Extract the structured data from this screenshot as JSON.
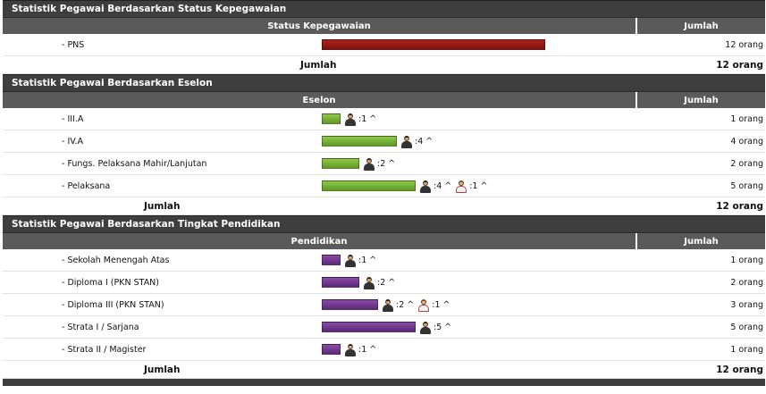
{
  "sections": [
    {
      "title": "Statistik Pegawai Berdasarkan Status Kepegawaian",
      "col1": "Status Kepegawaian",
      "col2": "Jumlah",
      "bar_color": "red",
      "rows": [
        {
          "label": "- PNS",
          "value": "12 orang",
          "bar_fraction": 1.0,
          "people": []
        }
      ],
      "total_label": "Jumlah",
      "total_value": "12 orang"
    },
    {
      "title": "Statistik Pegawai Berdasarkan Eselon",
      "col1": "Eselon",
      "col2": "Jumlah",
      "bar_color": "green",
      "rows": [
        {
          "label": "- III.A",
          "value": "1 orang",
          "bar_fraction": 0.2,
          "people": [
            {
              "type": "male-icon",
              "text": ":1 ^"
            }
          ]
        },
        {
          "label": "- IV.A",
          "value": "4 orang",
          "bar_fraction": 0.8,
          "people": [
            {
              "type": "male-icon",
              "text": ":4 ^"
            }
          ]
        },
        {
          "label": "- Fungs. Pelaksana Mahir/Lanjutan",
          "value": "2 orang",
          "bar_fraction": 0.4,
          "people": [
            {
              "type": "male-icon",
              "text": ":2 ^"
            }
          ]
        },
        {
          "label": "- Pelaksana",
          "value": "5 orang",
          "bar_fraction": 1.0,
          "people": [
            {
              "type": "male-icon",
              "text": ":4 ^"
            },
            {
              "type": "female-icon",
              "text": ":1 ^"
            }
          ]
        }
      ],
      "total_label": "Jumlah",
      "total_value": "12 orang"
    },
    {
      "title": "Statistik Pegawai Berdasarkan Tingkat Pendidikan",
      "col1": "Pendidikan",
      "col2": "Jumlah",
      "bar_color": "purple",
      "rows": [
        {
          "label": "- Sekolah Menengah Atas",
          "value": "1 orang",
          "bar_fraction": 0.2,
          "people": [
            {
              "type": "male-icon",
              "text": ":1 ^"
            }
          ]
        },
        {
          "label": "- Diploma I (PKN STAN)",
          "value": "2 orang",
          "bar_fraction": 0.4,
          "people": [
            {
              "type": "male-icon",
              "text": ":2 ^"
            }
          ]
        },
        {
          "label": "- Diploma III (PKN STAN)",
          "value": "3 orang",
          "bar_fraction": 0.6,
          "people": [
            {
              "type": "male-icon",
              "text": ":2 ^"
            },
            {
              "type": "female-icon",
              "text": ":1 ^"
            }
          ]
        },
        {
          "label": "- Strata I / Sarjana",
          "value": "5 orang",
          "bar_fraction": 1.0,
          "people": [
            {
              "type": "male-icon",
              "text": ":5 ^"
            }
          ]
        },
        {
          "label": "- Strata II / Magister",
          "value": "1 orang",
          "bar_fraction": 0.2,
          "people": [
            {
              "type": "male-icon",
              "text": ":1 ^"
            }
          ]
        }
      ],
      "total_label": "Jumlah",
      "total_value": "12 orang"
    }
  ]
}
